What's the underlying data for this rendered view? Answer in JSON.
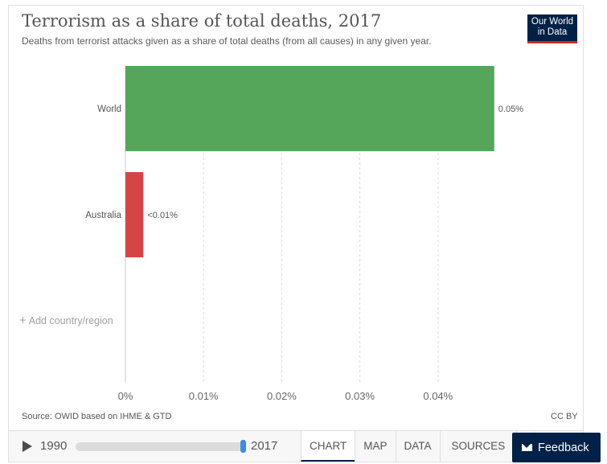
{
  "header": {
    "title": "Terrorism as a share of total deaths, 2017",
    "subtitle": "Deaths from terrorist attacks given as a share of total deaths (from all causes) in any given year.",
    "logo_line1": "Our World",
    "logo_line2": "in Data"
  },
  "chart_data": {
    "type": "bar",
    "orientation": "horizontal",
    "title": "Terrorism as a share of total deaths, 2017",
    "categories": [
      "World",
      "Australia"
    ],
    "values": [
      0.0472,
      0.0023
    ],
    "value_labels": [
      "0.05%",
      "<0.01%"
    ],
    "colors": [
      "#55a65a",
      "#d64545"
    ],
    "x_ticks": [
      0,
      0.01,
      0.02,
      0.03,
      0.04
    ],
    "x_tick_labels": [
      "0%",
      "0.01%",
      "0.02%",
      "0.03%",
      "0.04%"
    ],
    "xlim": [
      0,
      0.05
    ],
    "grid": "vertical dashed"
  },
  "add_region_label": "Add country/region",
  "footer": {
    "source": "Source: OWID based on IHME & GTD",
    "license": "CC BY"
  },
  "controls": {
    "year_start": "1990",
    "year_end": "2017",
    "tabs": [
      "CHART",
      "MAP",
      "DATA",
      "SOURCES"
    ],
    "active_tab": "CHART"
  },
  "feedback_label": "Feedback"
}
